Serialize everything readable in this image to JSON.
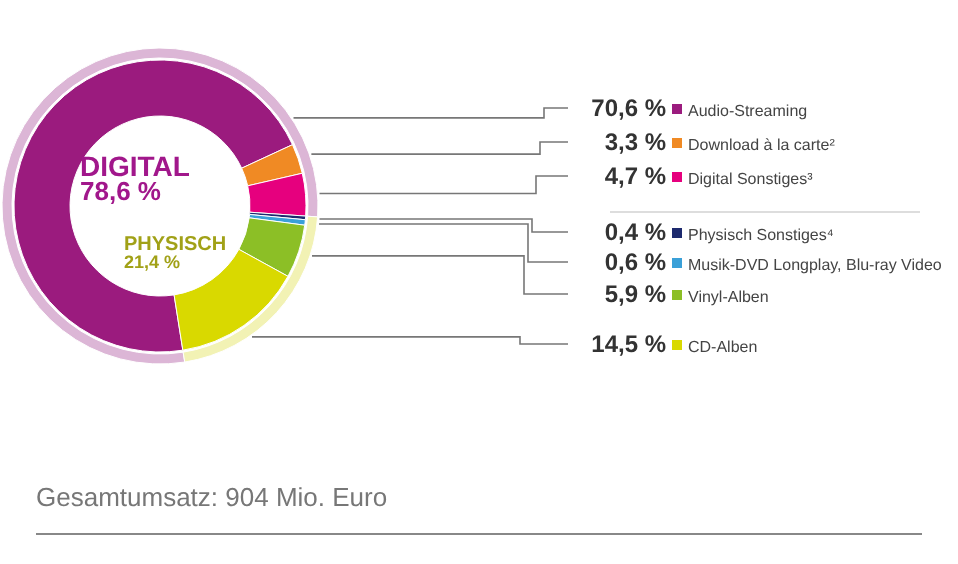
{
  "chart_data": [
    {
      "type": "donut",
      "categories": [
        "Audio-Streaming",
        "Download à la carte²",
        "Digital Sonstiges³",
        "Physisch Sonstiges⁴",
        "Musik-DVD Longplay, Blu-ray Video",
        "Vinyl-Alben",
        "CD-Alben"
      ],
      "values": [
        70.6,
        3.3,
        4.7,
        0.4,
        0.6,
        5.9,
        14.5
      ],
      "colors": [
        "#9b1b7e",
        "#f08a24",
        "#e6007e",
        "#1d2a6e",
        "#3aa0d8",
        "#8cbf26",
        "#d9d900"
      ],
      "value_labels": [
        "70,6 %",
        "3,3 %",
        "4,7 %",
        "0,4 %",
        "0,6 %",
        "5,9 %",
        "14,5 %"
      ],
      "legend": "right",
      "annotations": [
        "Gesamtumsatz: 904 Mio. Euro"
      ]
    },
    {
      "type": "donut",
      "categories": [
        "DIGITAL",
        "PHYSISCH"
      ],
      "values": [
        78.6,
        21.4
      ],
      "colors": [
        "#dcb6d6",
        "#f2f2b4"
      ],
      "value_labels": [
        "78,6 %",
        "21,4 %"
      ]
    }
  ]
}
